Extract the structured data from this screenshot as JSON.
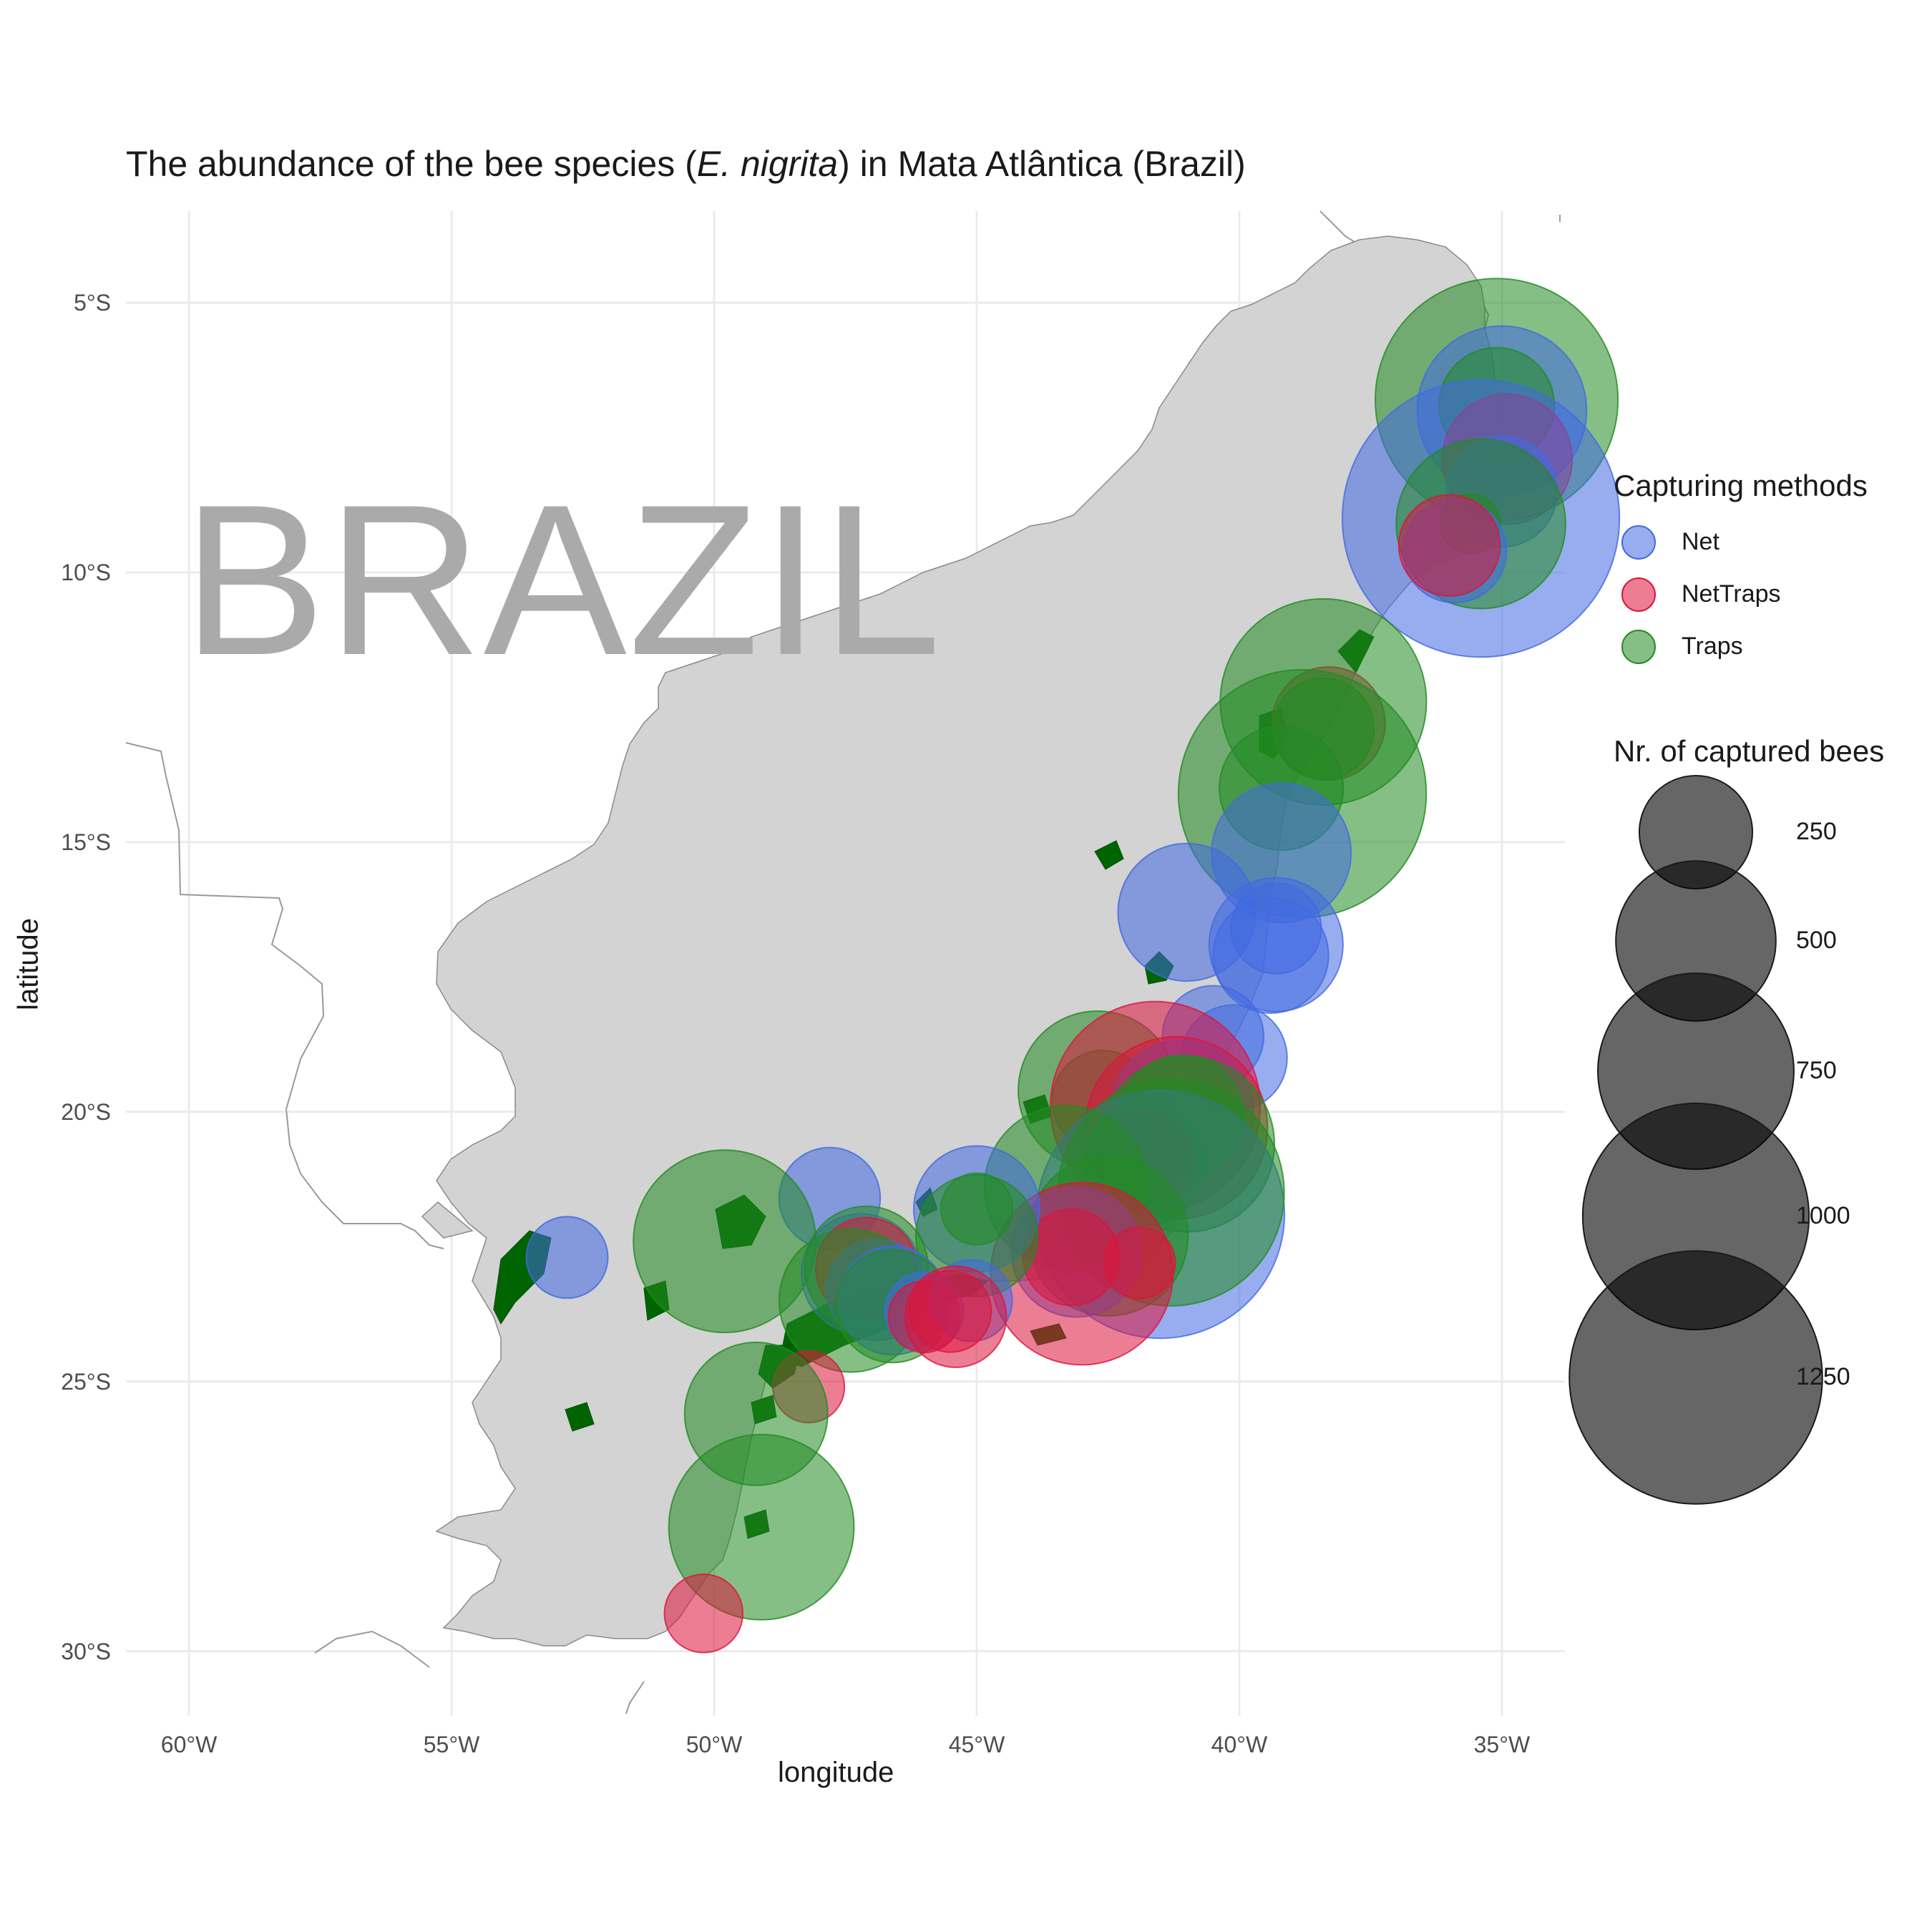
{
  "title_prefix": "The abundance of the bee species (",
  "title_species": "E. nigrita",
  "title_suffix": ") in Mata Atlântica (Brazil)",
  "watermark": "BRAZIL",
  "xlabel": "longitude",
  "ylabel": "latitude",
  "x_ticks": [
    "60°W",
    "55°W",
    "50°W",
    "45°W",
    "40°W",
    "35°W"
  ],
  "y_ticks": [
    "5°S",
    "10°S",
    "15°S",
    "20°S",
    "25°S",
    "30°S"
  ],
  "legend_color": {
    "title": "Capturing methods",
    "items": [
      {
        "label": "Net",
        "color": "#4169e1"
      },
      {
        "label": "NetTraps",
        "color": "#dc143c"
      },
      {
        "label": "Traps",
        "color": "#228b22"
      }
    ]
  },
  "legend_size": {
    "title": "Nr. of captured bees",
    "items": [
      {
        "label": "250",
        "value": 250
      },
      {
        "label": "500",
        "value": 500
      },
      {
        "label": "750",
        "value": 750
      },
      {
        "label": "1000",
        "value": 1000
      },
      {
        "label": "1250",
        "value": 1250
      }
    ]
  },
  "map_data": {
    "xlim": [
      -61.2,
      -33.8
    ],
    "ylim": [
      -31.2,
      -3.3
    ],
    "region_fill": "#d3d3d3",
    "forest_fill": "#006400",
    "points": [
      {
        "lon": -35.1,
        "lat": -6.8,
        "method": "Traps",
        "count": 1150
      },
      {
        "lon": -35.0,
        "lat": -7.0,
        "method": "Net",
        "count": 560
      },
      {
        "lon": -35.1,
        "lat": -6.9,
        "method": "Traps",
        "count": 260
      },
      {
        "lon": -34.9,
        "lat": -7.9,
        "method": "NetTraps",
        "count": 330
      },
      {
        "lon": -35.0,
        "lat": -8.5,
        "method": "Net",
        "count": 240
      },
      {
        "lon": -35.4,
        "lat": -9.0,
        "method": "Net",
        "count": 1500
      },
      {
        "lon": -35.4,
        "lat": -9.1,
        "method": "Traps",
        "count": 560
      },
      {
        "lon": -35.6,
        "lat": -9.1,
        "method": "Traps",
        "count": 70
      },
      {
        "lon": -35.9,
        "lat": -9.6,
        "method": "Net",
        "count": 210
      },
      {
        "lon": -36.0,
        "lat": -9.5,
        "method": "NetTraps",
        "count": 200
      },
      {
        "lon": -38.3,
        "lat": -12.8,
        "method": "NetTraps",
        "count": 250
      },
      {
        "lon": -38.4,
        "lat": -12.4,
        "method": "Traps",
        "count": 830
      },
      {
        "lon": -38.4,
        "lat": -12.9,
        "method": "Traps",
        "count": 200
      },
      {
        "lon": -38.8,
        "lat": -14.1,
        "method": "Traps",
        "count": 1200
      },
      {
        "lon": -39.2,
        "lat": -14.0,
        "method": "Traps",
        "count": 300
      },
      {
        "lon": -39.2,
        "lat": -15.2,
        "method": "Net",
        "count": 380
      },
      {
        "lon": -41.0,
        "lat": -16.3,
        "method": "Net",
        "count": 370
      },
      {
        "lon": -39.3,
        "lat": -16.6,
        "method": "Net",
        "count": 160
      },
      {
        "lon": -39.3,
        "lat": -16.9,
        "method": "Net",
        "count": 350
      },
      {
        "lon": -39.4,
        "lat": -17.1,
        "method": "Net",
        "count": 260
      },
      {
        "lon": -40.5,
        "lat": -18.6,
        "method": "Net",
        "count": 200
      },
      {
        "lon": -40.1,
        "lat": -19.0,
        "method": "Net",
        "count": 220
      },
      {
        "lon": -42.7,
        "lat": -19.6,
        "method": "Traps",
        "count": 490
      },
      {
        "lon": -42.6,
        "lat": -19.8,
        "method": "Traps",
        "count": 200
      },
      {
        "lon": -41.6,
        "lat": -19.9,
        "method": "NetTraps",
        "count": 860
      },
      {
        "lon": -41.1,
        "lat": -20.0,
        "method": "Net",
        "count": 400
      },
      {
        "lon": -41.2,
        "lat": -20.3,
        "method": "NetTraps",
        "count": 650
      },
      {
        "lon": -41.1,
        "lat": -20.1,
        "method": "Traps",
        "count": 300
      },
      {
        "lon": -41.0,
        "lat": -20.6,
        "method": "Traps",
        "count": 600
      },
      {
        "lon": -41.8,
        "lat": -20.9,
        "method": "NetTraps",
        "count": 200
      },
      {
        "lon": -41.8,
        "lat": -21.0,
        "method": "Traps",
        "count": 280
      },
      {
        "lon": -41.5,
        "lat": -21.9,
        "method": "Net",
        "count": 1200
      },
      {
        "lon": -41.3,
        "lat": -21.5,
        "method": "Traps",
        "count": 1000
      },
      {
        "lon": -43.3,
        "lat": -21.4,
        "method": "Traps",
        "count": 520
      },
      {
        "lon": -42.5,
        "lat": -22.3,
        "method": "Traps",
        "count": 500
      },
      {
        "lon": -43.1,
        "lat": -22.6,
        "method": "Net",
        "count": 330
      },
      {
        "lon": -43.2,
        "lat": -22.7,
        "method": "NetTraps",
        "count": 180
      },
      {
        "lon": -43.0,
        "lat": -23.0,
        "method": "NetTraps",
        "count": 650
      },
      {
        "lon": -41.9,
        "lat": -22.8,
        "method": "NetTraps",
        "count": 100
      },
      {
        "lon": -45.0,
        "lat": -21.8,
        "method": "Net",
        "count": 310
      },
      {
        "lon": -45.0,
        "lat": -21.8,
        "method": "Traps",
        "count": 100
      },
      {
        "lon": -45.0,
        "lat": -22.3,
        "method": "Traps",
        "count": 290
      },
      {
        "lon": -47.8,
        "lat": -21.6,
        "method": "Net",
        "count": 200
      },
      {
        "lon": -49.8,
        "lat": -22.4,
        "method": "Traps",
        "count": 650
      },
      {
        "lon": -52.8,
        "lat": -22.7,
        "method": "Net",
        "count": 130
      },
      {
        "lon": -47.2,
        "lat": -23.0,
        "method": "Net",
        "count": 280
      },
      {
        "lon": -47.1,
        "lat": -22.9,
        "method": "Traps",
        "count": 300
      },
      {
        "lon": -47.1,
        "lat": -22.9,
        "method": "NetTraps",
        "count": 200
      },
      {
        "lon": -46.9,
        "lat": -23.3,
        "method": "Net",
        "count": 200
      },
      {
        "lon": -47.4,
        "lat": -23.5,
        "method": "Traps",
        "count": 400
      },
      {
        "lon": -46.6,
        "lat": -23.5,
        "method": "Net",
        "count": 230
      },
      {
        "lon": -46.6,
        "lat": -23.6,
        "method": "Traps",
        "count": 250
      },
      {
        "lon": -46.0,
        "lat": -23.7,
        "method": "Net",
        "count": 120
      },
      {
        "lon": -46.0,
        "lat": -23.8,
        "method": "NetTraps",
        "count": 100
      },
      {
        "lon": -45.1,
        "lat": -23.5,
        "method": "Net",
        "count": 130
      },
      {
        "lon": -45.4,
        "lat": -23.8,
        "method": "NetTraps",
        "count": 200
      },
      {
        "lon": -45.5,
        "lat": -23.7,
        "method": "NetTraps",
        "count": 130
      },
      {
        "lon": -48.2,
        "lat": -25.1,
        "method": "NetTraps",
        "count": 100
      },
      {
        "lon": -49.2,
        "lat": -25.6,
        "method": "Traps",
        "count": 400
      },
      {
        "lon": -49.1,
        "lat": -27.7,
        "method": "Traps",
        "count": 670
      },
      {
        "lon": -50.2,
        "lat": -29.3,
        "method": "NetTraps",
        "count": 120
      }
    ]
  }
}
